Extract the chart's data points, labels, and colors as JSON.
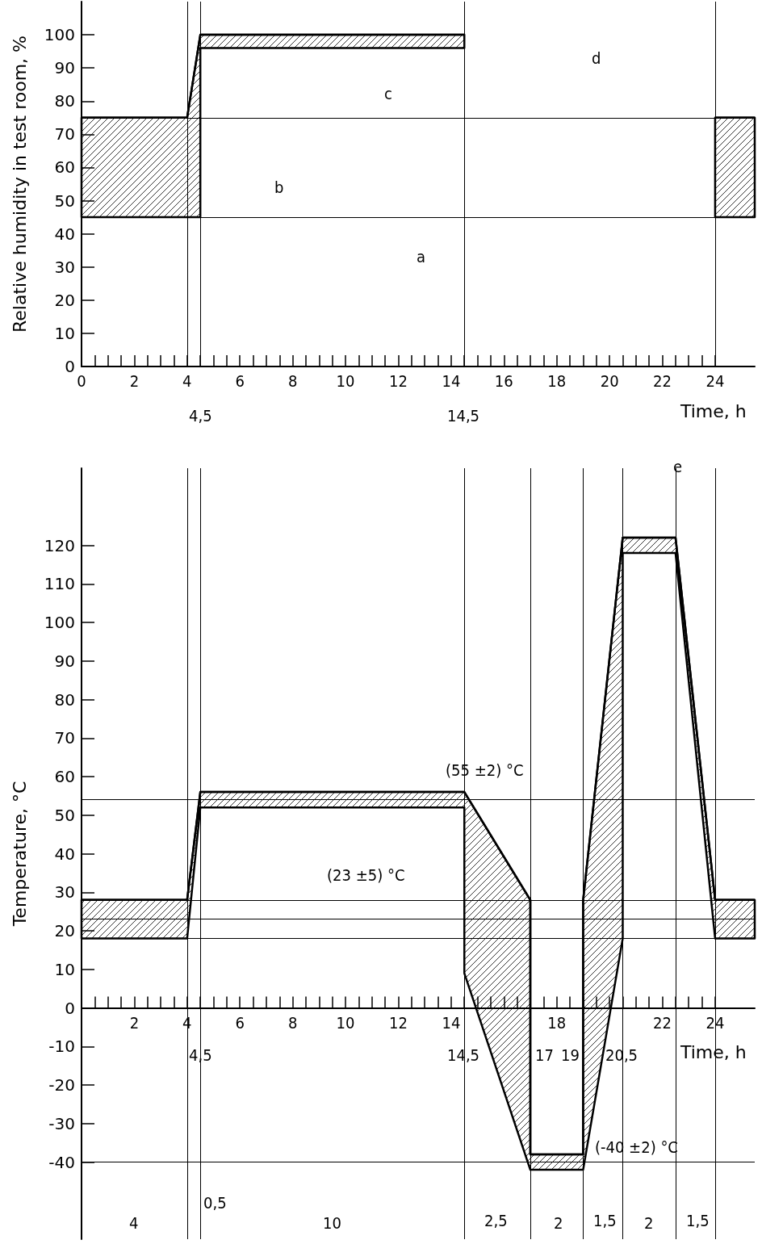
{
  "chart_data": [
    {
      "type": "line",
      "ylabel": "Relative humidity in test room, %",
      "xlabel": "Time, h",
      "xlim": [
        0,
        25.5
      ],
      "ylim": [
        0,
        110
      ],
      "xticks": [
        0,
        {
          "value": 0.5,
          "label": null
        },
        {
          "value": 1,
          "label": null
        },
        {
          "value": 1.5,
          "label": null
        },
        2,
        {
          "value": 2.5,
          "label": null
        },
        {
          "value": 3,
          "label": null
        },
        {
          "value": 3.5,
          "label": null
        },
        4,
        {
          "value": 4.5,
          "label": null
        },
        {
          "value": 5,
          "label": null
        },
        {
          "value": 5.5,
          "label": null
        },
        6,
        {
          "value": 6.5,
          "label": null
        },
        {
          "value": 7,
          "label": null
        },
        {
          "value": 7.5,
          "label": null
        },
        8,
        {
          "value": 8.5,
          "label": null
        },
        {
          "value": 9,
          "label": null
        },
        {
          "value": 9.5,
          "label": null
        },
        10,
        {
          "value": 10.5,
          "label": null
        },
        {
          "value": 11,
          "label": null
        },
        {
          "value": 11.5,
          "label": null
        },
        12,
        {
          "value": 12.5,
          "label": null
        },
        {
          "value": 13,
          "label": null
        },
        {
          "value": 13.5,
          "label": null
        },
        14,
        {
          "value": 14.5,
          "label": null
        },
        {
          "value": 15,
          "label": null
        },
        {
          "value": 15.5,
          "label": null
        },
        16,
        {
          "value": 16.5,
          "label": null
        },
        {
          "value": 17,
          "label": null
        },
        {
          "value": 17.5,
          "label": null
        },
        18,
        {
          "value": 18.5,
          "label": null
        },
        {
          "value": 19,
          "label": null
        },
        {
          "value": 19.5,
          "label": null
        },
        20,
        {
          "value": 20.5,
          "label": null
        },
        {
          "value": 21,
          "label": null
        },
        {
          "value": 21.5,
          "label": null
        },
        22,
        {
          "value": 22.5,
          "label": null
        },
        {
          "value": 23,
          "label": null
        },
        {
          "value": 23.5,
          "label": null
        },
        24
      ],
      "yticks": [
        0,
        10,
        20,
        30,
        40,
        50,
        60,
        70,
        80,
        90,
        100
      ],
      "series": [
        {
          "color": "#000000",
          "x": [
            0,
            4,
            4.5,
            4.5,
            14.5
          ],
          "values": [
            75,
            75,
            100,
            100,
            100
          ],
          "upper": [
            75,
            75,
            100,
            100,
            100
          ],
          "lower": [
            45,
            45,
            45,
            96,
            96
          ]
        },
        {
          "color": "#000000",
          "x": [
            24,
            25.5
          ],
          "values": [
            75,
            75
          ],
          "upper": [
            75,
            75
          ],
          "lower": [
            45,
            45
          ]
        }
      ],
      "ref_lines": [
        {
          "axis": "y",
          "value": 75
        },
        {
          "axis": "y",
          "value": 45
        },
        {
          "axis": "x",
          "value": 4
        },
        {
          "axis": "x",
          "value": 4.5
        },
        {
          "axis": "x",
          "value": 14.5
        },
        {
          "axis": "x",
          "value": 24
        }
      ],
      "annotations": [
        "a",
        "b",
        "c",
        "d",
        "4,5",
        "14,5"
      ],
      "grid": false,
      "marker": "none",
      "line_style": "solid"
    },
    {
      "type": "line",
      "ylabel": "Temperature, °C",
      "xlabel": "Time, h",
      "xlim": [
        0,
        25.5
      ],
      "ylim": [
        -60,
        140
      ],
      "xticks": [
        {
          "value": 0,
          "label": null
        },
        {
          "value": 0.5,
          "label": null
        },
        {
          "value": 1,
          "label": null
        },
        {
          "value": 1.5,
          "label": null
        },
        2,
        {
          "value": 2.5,
          "label": null
        },
        {
          "value": 3,
          "label": null
        },
        {
          "value": 3.5,
          "label": null
        },
        4,
        {
          "value": 4.5,
          "label": null
        },
        {
          "value": 5,
          "label": null
        },
        {
          "value": 5.5,
          "label": null
        },
        6,
        {
          "value": 6.5,
          "label": null
        },
        {
          "value": 7,
          "label": null
        },
        {
          "value": 7.5,
          "label": null
        },
        8,
        {
          "value": 8.5,
          "label": null
        },
        {
          "value": 9,
          "label": null
        },
        {
          "value": 9.5,
          "label": null
        },
        10,
        {
          "value": 10.5,
          "label": null
        },
        {
          "value": 11,
          "label": null
        },
        {
          "value": 11.5,
          "label": null
        },
        12,
        {
          "value": 12.5,
          "label": null
        },
        {
          "value": 13,
          "label": null
        },
        {
          "value": 13.5,
          "label": null
        },
        14,
        {
          "value": 14.5,
          "label": null
        },
        {
          "value": 15,
          "label": null
        },
        {
          "value": 15.5,
          "label": null
        },
        {
          "value": 16,
          "label": null
        },
        {
          "value": 16.5,
          "label": null
        },
        {
          "value": 17,
          "label": null
        },
        {
          "value": 17.5,
          "label": null
        },
        18,
        {
          "value": 18.5,
          "label": null
        },
        {
          "value": 19,
          "label": null
        },
        {
          "value": 19.5,
          "label": null
        },
        {
          "value": 20,
          "label": null
        },
        {
          "value": 20.5,
          "label": null
        },
        {
          "value": 21,
          "label": null
        },
        {
          "value": 21.5,
          "label": null
        },
        22,
        {
          "value": 22.5,
          "label": null
        },
        {
          "value": 23,
          "label": null
        },
        {
          "value": 23.5,
          "label": null
        },
        24
      ],
      "yticks": [
        -40,
        -30,
        -20,
        -10,
        0,
        10,
        20,
        30,
        40,
        50,
        60,
        70,
        80,
        90,
        100,
        110,
        120
      ],
      "series": [
        {
          "color": "#000000",
          "x": [
            0,
            4,
            4.5,
            14.5,
            14.5,
            17,
            17,
            19,
            19,
            20.5,
            20.5,
            22.5,
            24,
            25.5
          ],
          "values": [
            28,
            28,
            56,
            56,
            56,
            28,
            -38,
            -38,
            28,
            122,
            122,
            122,
            28,
            28
          ],
          "upper": [
            28,
            28,
            56,
            56,
            56,
            28,
            -38,
            -38,
            28,
            122,
            122,
            122,
            28,
            28
          ],
          "lower": [
            18,
            18,
            52,
            52,
            9,
            -42,
            -42,
            -42,
            -42,
            18,
            118,
            118,
            18,
            18
          ]
        }
      ],
      "ref_lines": [
        {
          "axis": "y",
          "value": 28
        },
        {
          "axis": "y",
          "value": 23
        },
        {
          "axis": "y",
          "value": 18
        },
        {
          "axis": "y",
          "value": 54
        },
        {
          "axis": "y",
          "value": -40
        },
        {
          "axis": "x",
          "value": 4
        },
        {
          "axis": "x",
          "value": 4.5
        },
        {
          "axis": "x",
          "value": 14.5
        },
        {
          "axis": "x",
          "value": 17
        },
        {
          "axis": "x",
          "value": 19
        },
        {
          "axis": "x",
          "value": 20.5
        },
        {
          "axis": "x",
          "value": 22.5
        },
        {
          "axis": "x",
          "value": 24
        }
      ],
      "annotations": [
        "(55 ±2) °C",
        "(23 ±5) °C",
        "(-40 ±2) °C",
        "e",
        "4",
        "0,5",
        "10",
        "2,5",
        "2",
        "1,5",
        "2",
        "1,5",
        "4,5",
        "14,5",
        "17",
        "19",
        "20,5"
      ],
      "grid": false,
      "marker": "none",
      "line_style": "solid"
    }
  ]
}
